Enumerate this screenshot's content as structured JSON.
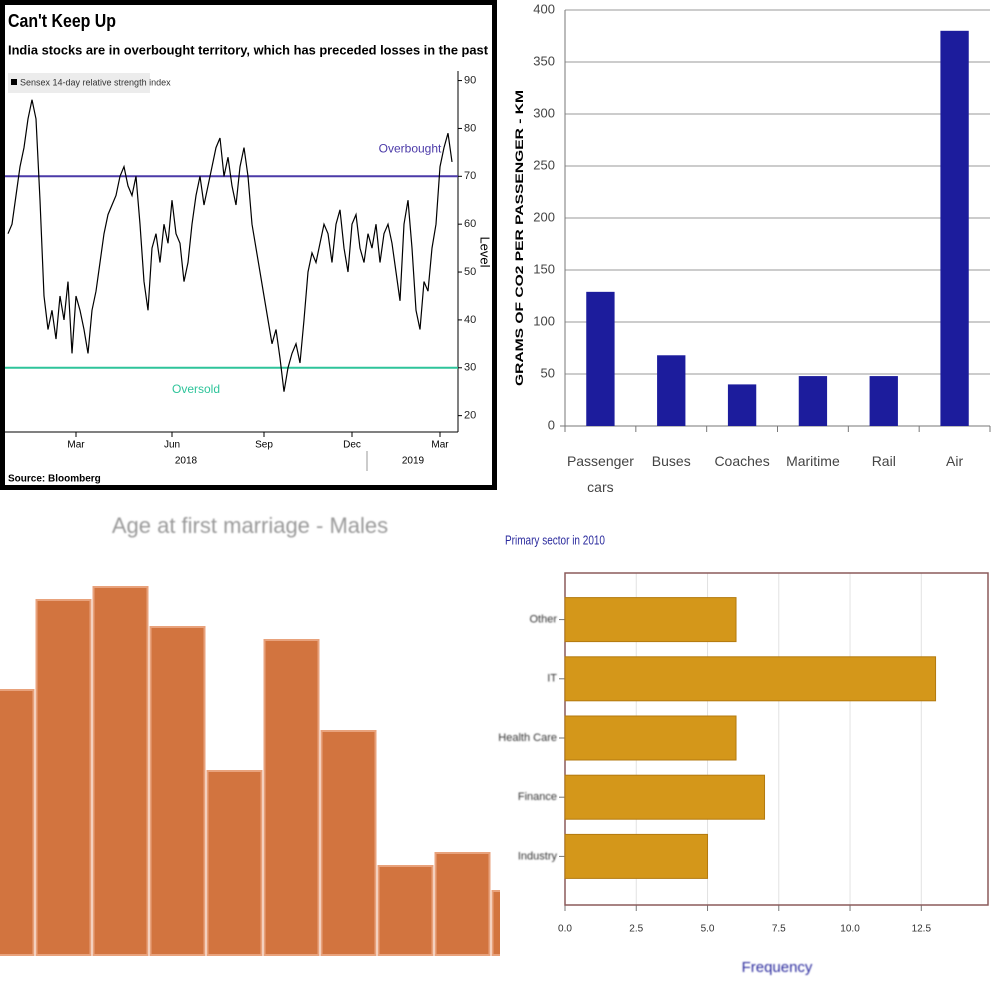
{
  "chart_data": [
    {
      "type": "line",
      "title": "Can't Keep Up",
      "subtitle": "India stocks are in overbought territory, which has preceded losses in the past",
      "source": "Source: Bloomberg",
      "y_label": "Level",
      "categories": [
        null,
        null,
        null,
        null,
        null,
        null,
        null,
        null,
        null,
        null,
        null,
        null,
        null,
        null,
        null,
        null,
        null,
        "Mar",
        null,
        null,
        null,
        null,
        null,
        null,
        null,
        null,
        null,
        null,
        null,
        null,
        null,
        null,
        null,
        null,
        null,
        null,
        null,
        null,
        null,
        null,
        null,
        "Jun",
        null,
        null,
        null,
        null,
        null,
        null,
        null,
        null,
        null,
        null,
        null,
        null,
        null,
        null,
        null,
        null,
        null,
        null,
        null,
        null,
        null,
        null,
        "Sep",
        null,
        null,
        null,
        null,
        null,
        null,
        null,
        null,
        null,
        null,
        null,
        null,
        null,
        null,
        null,
        null,
        null,
        null,
        null,
        null,
        null,
        "Dec",
        null,
        null,
        null,
        null,
        null,
        null,
        null,
        null,
        null,
        null,
        null,
        null,
        null,
        null,
        null,
        null,
        null,
        null,
        null,
        null,
        null,
        "Mar",
        null,
        null,
        null
      ],
      "x_group_labels": [
        "2018",
        "2019"
      ],
      "series": [
        {
          "name": "Sensex 14-day relative strength index",
          "color": "#000000",
          "values": [
            58,
            60,
            66,
            72,
            76,
            82,
            86,
            82,
            65,
            45,
            38,
            42,
            36,
            45,
            40,
            48,
            33,
            45,
            42,
            38,
            33,
            42,
            46,
            52,
            58,
            62,
            64,
            66,
            70,
            72,
            68,
            66,
            70,
            60,
            48,
            42,
            55,
            58,
            52,
            60,
            56,
            65,
            58,
            56,
            48,
            52,
            60,
            66,
            70,
            64,
            68,
            72,
            76,
            78,
            70,
            74,
            68,
            64,
            72,
            76,
            70,
            60,
            55,
            50,
            45,
            40,
            35,
            38,
            32,
            25,
            30,
            33,
            35,
            31,
            40,
            50,
            54,
            52,
            56,
            60,
            58,
            52,
            60,
            63,
            55,
            50,
            60,
            62,
            55,
            52,
            58,
            55,
            60,
            52,
            58,
            60,
            56,
            50,
            44,
            60,
            65,
            55,
            42,
            38,
            48,
            46,
            55,
            60,
            72,
            76,
            79,
            73
          ]
        }
      ],
      "reference_lines": [
        {
          "value": 70,
          "label": "Overbought",
          "color": "#4b3aa8"
        },
        {
          "value": 30,
          "label": "Oversold",
          "color": "#2ec49a"
        }
      ],
      "ylim": [
        17,
        92
      ],
      "yticks": [
        20,
        30,
        40,
        50,
        60,
        70,
        80,
        90
      ],
      "y_axis_side": "right"
    },
    {
      "type": "bar",
      "y_label": "GRAMS OF CO2 PER PASSENGER - KM",
      "categories": [
        "Passenger cars",
        "Buses",
        "Coaches",
        "Maritime",
        "Rail",
        "Air"
      ],
      "values": [
        129,
        68,
        40,
        48,
        48,
        380
      ],
      "color": "#1c1c9c",
      "ylim": [
        0,
        400
      ],
      "yticks": [
        0,
        50,
        100,
        150,
        200,
        250,
        300,
        350,
        400
      ],
      "grid": true
    },
    {
      "type": "bar",
      "title": "Age at first marriage - Males",
      "categories": [
        null,
        null,
        null,
        null,
        null,
        null,
        null,
        null,
        null,
        null
      ],
      "values": [
        265,
        355,
        368,
        328,
        184,
        315,
        224,
        89,
        102,
        64
      ],
      "color": "#d2743f",
      "ylim": [
        0,
        370
      ]
    },
    {
      "type": "bar",
      "orientation": "horizontal",
      "title": "Primary sector in 2010",
      "x_label": "Frequency",
      "categories": [
        "Other",
        "IT",
        "Health Care",
        "Finance",
        "Industry"
      ],
      "values": [
        6,
        13,
        6,
        7,
        5
      ],
      "color": "#d4971a",
      "xlim": [
        0,
        14.84
      ],
      "xticks": [
        {
          "value": 0,
          "label": "0.0"
        },
        {
          "value": 2.5,
          "label": "2.5"
        },
        {
          "value": 5,
          "label": "5.0"
        },
        {
          "value": 7.5,
          "label": "7.5"
        },
        {
          "value": 10,
          "label": "10.0"
        },
        {
          "value": 12.5,
          "label": "12.5"
        }
      ],
      "grid": true
    }
  ]
}
